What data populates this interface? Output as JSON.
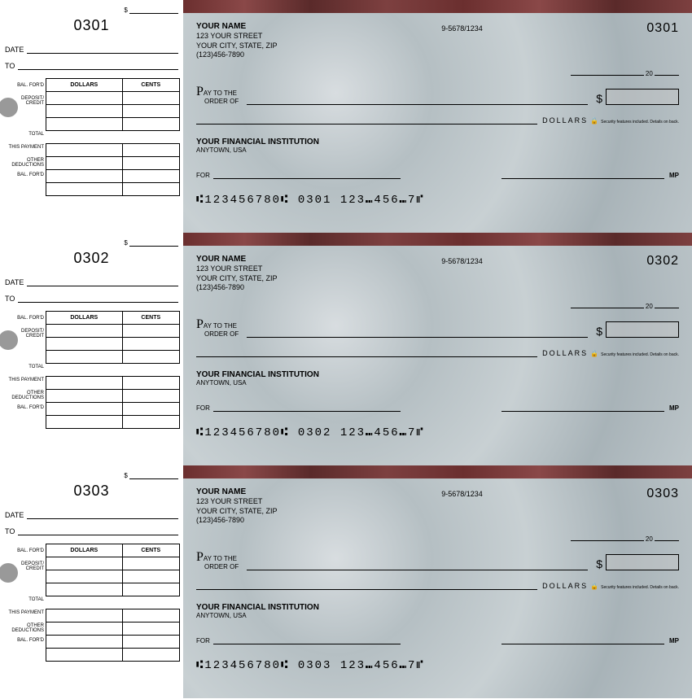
{
  "stub": {
    "date_label": "DATE",
    "to_label": "TO",
    "table_headers": [
      "DOLLARS",
      "CENTS"
    ],
    "row_labels": [
      "BAL. FOR'D",
      "DEPOSIT/ CREDIT",
      "",
      "TOTAL",
      "THIS PAYMENT",
      "OTHER DEDUCTIONS",
      "BAL. FOR'D"
    ]
  },
  "check": {
    "name": "YOUR NAME",
    "addr1": "123 YOUR STREET",
    "addr2": "YOUR CITY, STATE, ZIP",
    "phone": "(123)456-7890",
    "routing_top": "9-5678/1234",
    "century": "20",
    "payto": "PAY TO THE ORDER OF",
    "dollars_label": "DOLLARS",
    "security": "Security features included. Details on back.",
    "bank_name": "YOUR FINANCIAL INSTITUTION",
    "bank_city": "ANYTOWN, USA",
    "for_label": "FOR",
    "mp": "MP",
    "dollar_sign": "$"
  },
  "checks": [
    {
      "num": "0301",
      "micr": "⑆123456780⑆  0301  123⑉456⑉7�року"
    },
    {
      "num": "0302",
      "micr": "⑆123456780⑆  0302  123⑉456⑉7⑆"
    },
    {
      "num": "0303",
      "micr": "⑆123456780⑆  0303  123⑉456⑉7⑆"
    }
  ],
  "m": {
    "c0": "⑆123456780⑆  0301  123⑉456⑉7⑈",
    "c1": "⑆123456780⑆  0302  123⑉456⑉7⑈",
    "c2": "⑆123456780⑆  0303  123⑉456⑉7⑈"
  }
}
